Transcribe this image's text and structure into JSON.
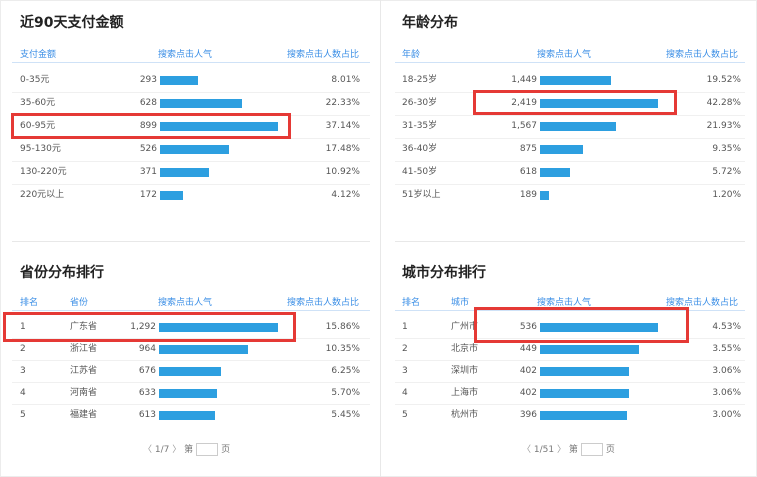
{
  "colors": {
    "bar": "#2d9fe0",
    "header": "#3a8ee6",
    "highlight": "#e53935"
  },
  "payment": {
    "title": "近90天支付金额",
    "headers": {
      "c1": "支付金额",
      "c2": "搜索点击人气",
      "c3": "搜索点击人数占比"
    },
    "rows": [
      {
        "label": "0-35元",
        "value": "293",
        "pct": "8.01%",
        "v": 293
      },
      {
        "label": "35-60元",
        "value": "628",
        "pct": "22.33%",
        "v": 628
      },
      {
        "label": "60-95元",
        "value": "899",
        "pct": "37.14%",
        "v": 899
      },
      {
        "label": "95-130元",
        "value": "526",
        "pct": "17.48%",
        "v": 526
      },
      {
        "label": "130-220元",
        "value": "371",
        "pct": "10.92%",
        "v": 371
      },
      {
        "label": "220元以上",
        "value": "172",
        "pct": "4.12%",
        "v": 172
      }
    ]
  },
  "age": {
    "title": "年龄分布",
    "headers": {
      "c1": "年龄",
      "c2": "搜索点击人气",
      "c3": "搜索点击人数占比"
    },
    "rows": [
      {
        "label": "18-25岁",
        "value": "1,449",
        "pct": "19.52%",
        "v": 1449
      },
      {
        "label": "26-30岁",
        "value": "2,419",
        "pct": "42.28%",
        "v": 2419
      },
      {
        "label": "31-35岁",
        "value": "1,567",
        "pct": "21.93%",
        "v": 1567
      },
      {
        "label": "36-40岁",
        "value": "875",
        "pct": "9.35%",
        "v": 875
      },
      {
        "label": "41-50岁",
        "value": "618",
        "pct": "5.72%",
        "v": 618
      },
      {
        "label": "51岁以上",
        "value": "189",
        "pct": "1.20%",
        "v": 189
      }
    ]
  },
  "province": {
    "title": "省份分布排行",
    "headers": {
      "c0": "排名",
      "c1": "省份",
      "c2": "搜索点击人气",
      "c3": "搜索点击人数占比"
    },
    "rows": [
      {
        "rank": "1",
        "label": "广东省",
        "value": "1,292",
        "pct": "15.86%",
        "v": 1292
      },
      {
        "rank": "2",
        "label": "浙江省",
        "value": "964",
        "pct": "10.35%",
        "v": 964
      },
      {
        "rank": "3",
        "label": "江苏省",
        "value": "676",
        "pct": "6.25%",
        "v": 676
      },
      {
        "rank": "4",
        "label": "河南省",
        "value": "633",
        "pct": "5.70%",
        "v": 633
      },
      {
        "rank": "5",
        "label": "福建省",
        "value": "613",
        "pct": "5.45%",
        "v": 613
      }
    ],
    "pager": {
      "prev": "〈",
      "page": "1/7",
      "next": "〉",
      "prefix": "第",
      "suffix": "页"
    }
  },
  "city": {
    "title": "城市分布排行",
    "headers": {
      "c0": "排名",
      "c1": "城市",
      "c2": "搜索点击人气",
      "c3": "搜索点击人数占比"
    },
    "rows": [
      {
        "rank": "1",
        "label": "广州市",
        "value": "536",
        "pct": "4.53%",
        "v": 536
      },
      {
        "rank": "2",
        "label": "北京市",
        "value": "449",
        "pct": "3.55%",
        "v": 449
      },
      {
        "rank": "3",
        "label": "深圳市",
        "value": "402",
        "pct": "3.06%",
        "v": 402
      },
      {
        "rank": "4",
        "label": "上海市",
        "value": "402",
        "pct": "3.06%",
        "v": 402
      },
      {
        "rank": "5",
        "label": "杭州市",
        "value": "396",
        "pct": "3.00%",
        "v": 396
      }
    ],
    "pager": {
      "prev": "〈",
      "page": "1/51",
      "next": "〉",
      "prefix": "第",
      "suffix": "页"
    }
  }
}
